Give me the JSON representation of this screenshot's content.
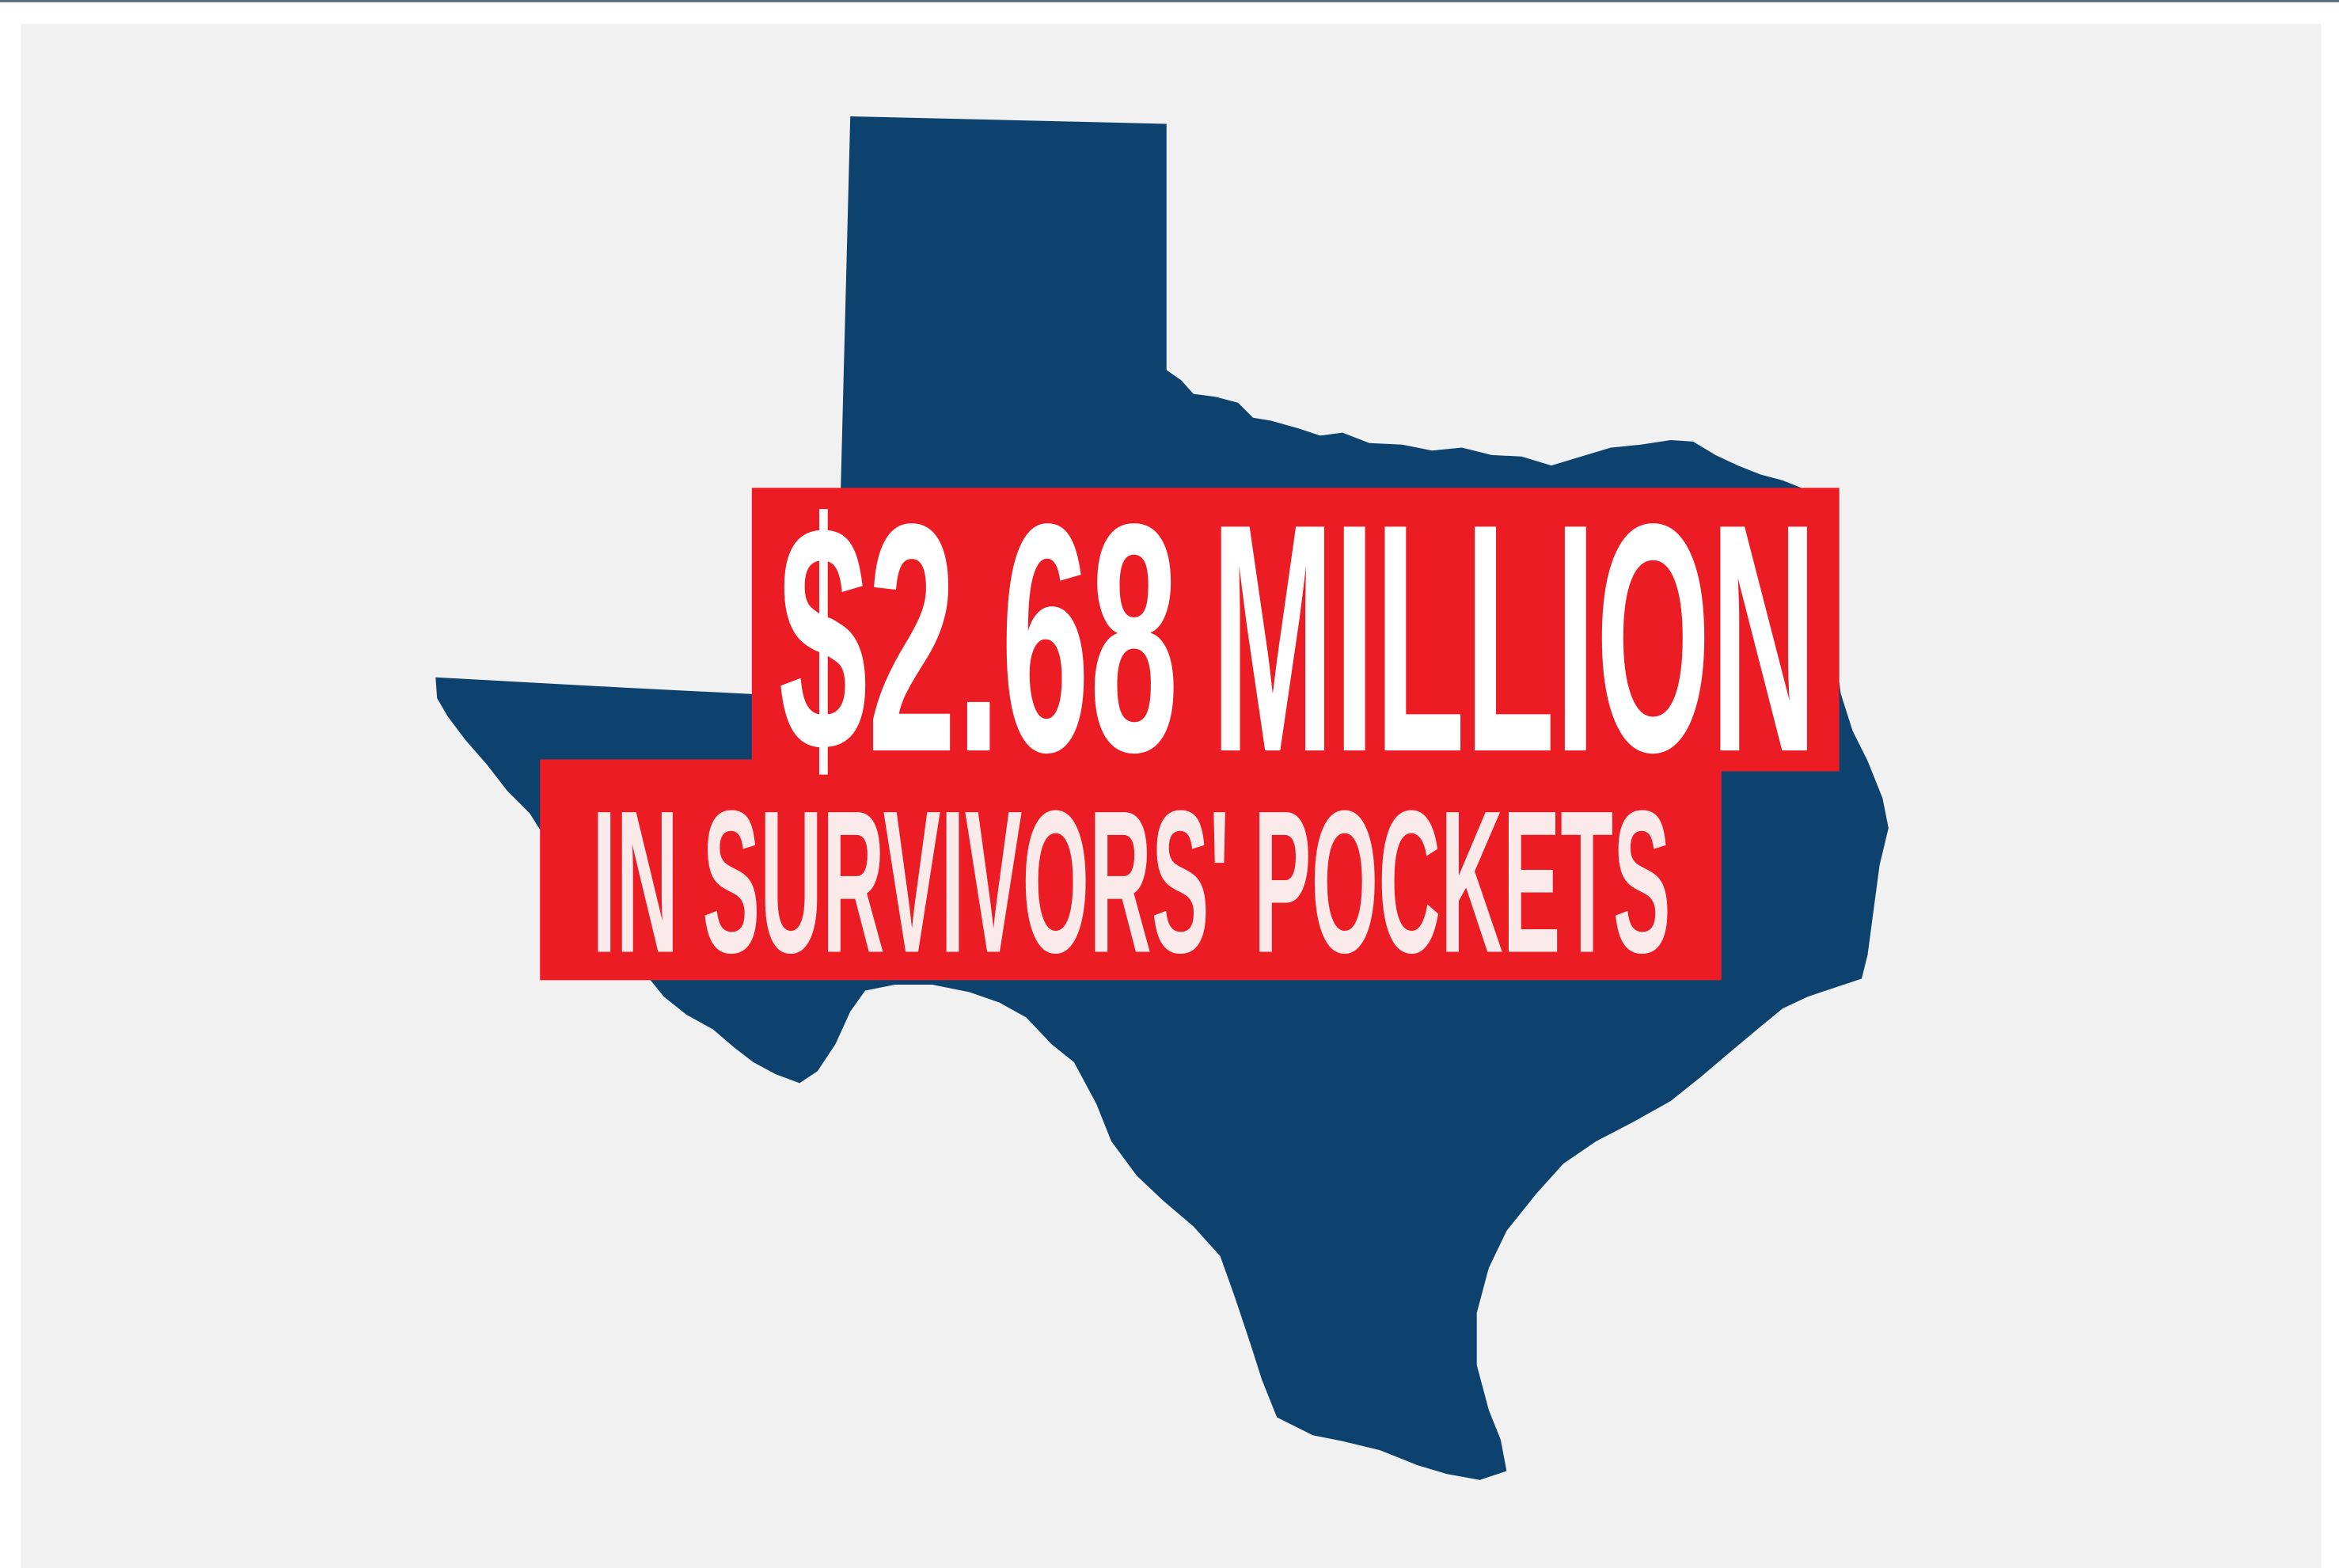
{
  "headline": {
    "amount": "$2.68",
    "unit": "MILLION",
    "subline": "IN SURVIVORS' POCKETS"
  }
}
